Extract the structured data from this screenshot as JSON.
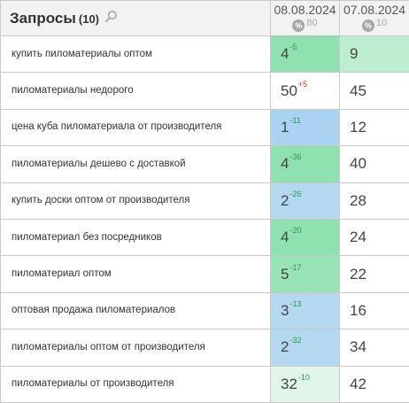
{
  "header": {
    "title": "Запросы",
    "count": "(10)",
    "dates": [
      {
        "date": "08.08.2024",
        "percent_icon": "%",
        "percent": "80"
      },
      {
        "date": "07.08.2024",
        "percent_icon": "%",
        "percent": "10"
      }
    ]
  },
  "rows": [
    {
      "query": "купить пиломатериалы оптом",
      "pos1": "4",
      "delta": "-5",
      "delta_color": "green",
      "pos1_bg": "#8fe1b0",
      "pos2": "9",
      "pos2_bg": "#bdeed1"
    },
    {
      "query": "пиломатериалы недорого",
      "pos1": "50",
      "delta": "+5",
      "delta_color": "red",
      "pos1_bg": "#ffffff",
      "pos2": "45",
      "pos2_bg": "#ffffff"
    },
    {
      "query": "цена куба пиломатериала от производителя",
      "pos1": "1",
      "delta": "-11",
      "delta_color": "green",
      "pos1_bg": "#a9d3f1",
      "pos2": "12",
      "pos2_bg": "#ffffff"
    },
    {
      "query": "пиломатериалы дешево с доставкой",
      "pos1": "4",
      "delta": "-36",
      "delta_color": "green",
      "pos1_bg": "#8fe1b0",
      "pos2": "40",
      "pos2_bg": "#ffffff"
    },
    {
      "query": "купить доски оптом от производителя",
      "pos1": "2",
      "delta": "-26",
      "delta_color": "green",
      "pos1_bg": "#b5d8f1",
      "pos2": "28",
      "pos2_bg": "#ffffff"
    },
    {
      "query": "пиломатериал без посредников",
      "pos1": "4",
      "delta": "-20",
      "delta_color": "green",
      "pos1_bg": "#8fe1b0",
      "pos2": "24",
      "pos2_bg": "#ffffff"
    },
    {
      "query": "пиломатериал оптом",
      "pos1": "5",
      "delta": "-17",
      "delta_color": "green",
      "pos1_bg": "#98e4b7",
      "pos2": "22",
      "pos2_bg": "#ffffff"
    },
    {
      "query": "оптовая продажа пиломатериалов",
      "pos1": "3",
      "delta": "-13",
      "delta_color": "green",
      "pos1_bg": "#b5d8f1",
      "pos2": "16",
      "pos2_bg": "#ffffff"
    },
    {
      "query": "пиломатериалы оптом от производителя",
      "pos1": "2",
      "delta": "-32",
      "delta_color": "green",
      "pos1_bg": "#b5d8f1",
      "pos2": "34",
      "pos2_bg": "#ffffff"
    },
    {
      "query": "пиломатериалы от производителя",
      "pos1": "32",
      "delta": "-10",
      "delta_color": "green",
      "pos1_bg": "#e1f5ea",
      "pos2": "42",
      "pos2_bg": "#ffffff"
    }
  ]
}
